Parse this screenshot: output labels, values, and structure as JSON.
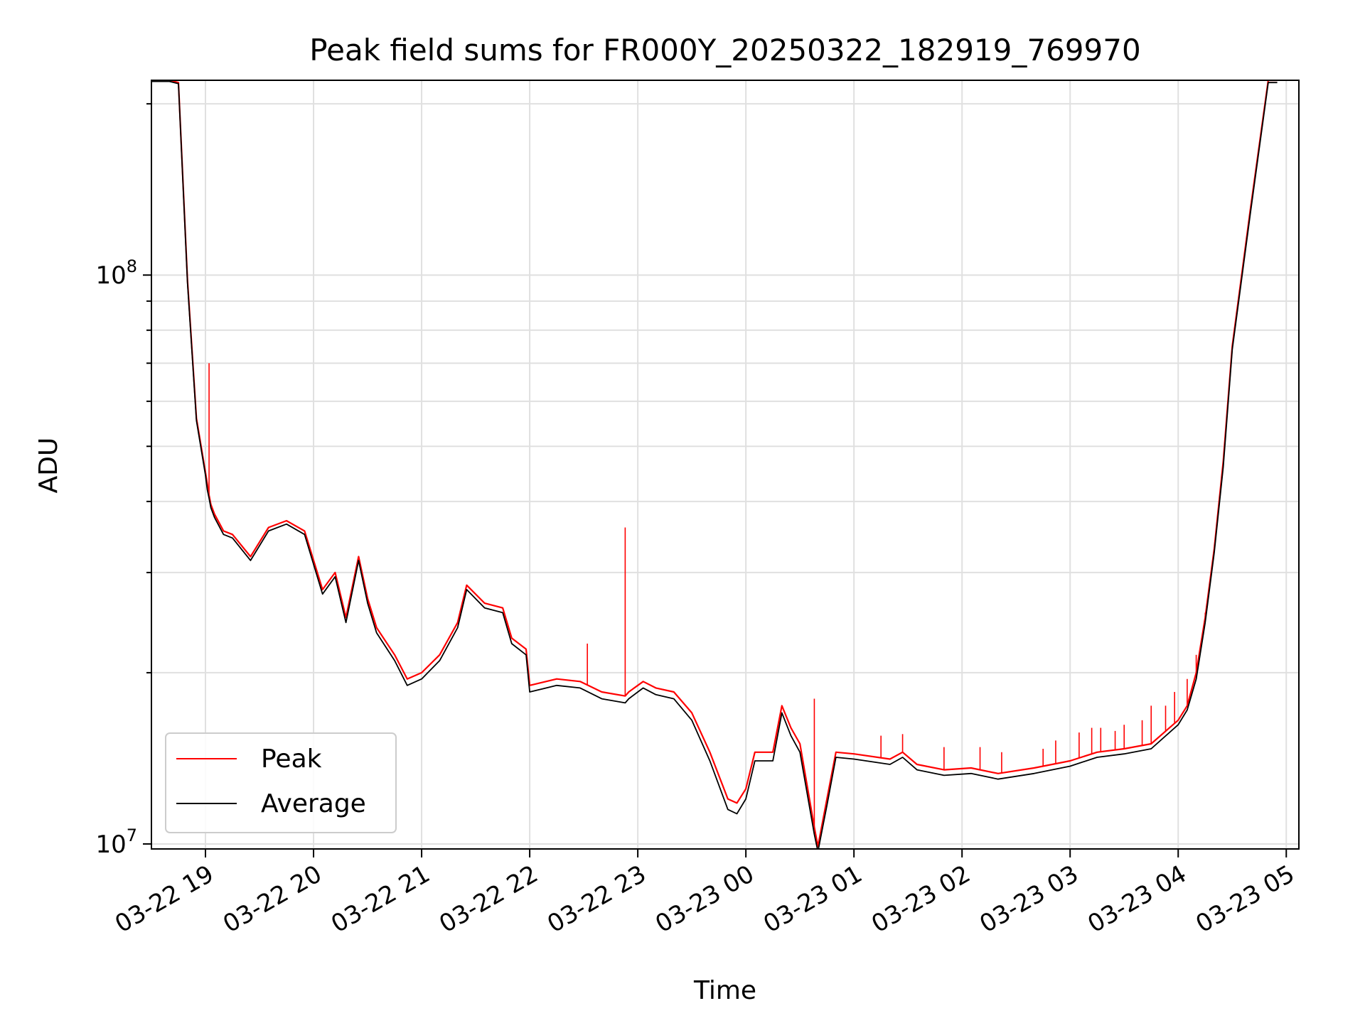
{
  "chart_data": {
    "type": "line",
    "title": "Peak field sums for FR000Y_20250322_182919_769970",
    "xlabel": "Time",
    "ylabel": "ADU",
    "y_scale": "log",
    "ylim": [
      9800000,
      220000000
    ],
    "xlim": [
      "2025-03-22T18:30",
      "2025-03-23T05:07"
    ],
    "x_ticks": [
      "03-22 19",
      "03-22 20",
      "03-22 21",
      "03-22 22",
      "03-22 23",
      "03-23 00",
      "03-23 01",
      "03-23 02",
      "03-23 03",
      "03-23 04",
      "03-23 05"
    ],
    "x_tick_values": [
      "2025-03-22T19:00",
      "2025-03-22T20:00",
      "2025-03-22T21:00",
      "2025-03-22T22:00",
      "2025-03-22T23:00",
      "2025-03-23T00:00",
      "2025-03-23T01:00",
      "2025-03-23T02:00",
      "2025-03-23T03:00",
      "2025-03-23T04:00",
      "2025-03-23T05:00"
    ],
    "y_ticks": [
      {
        "label_base": "10",
        "label_exp": "8",
        "value": 100000000
      },
      {
        "label_base": "10",
        "label_exp": "7",
        "value": 10000000
      }
    ],
    "grid": true,
    "legend_position": "lower-left",
    "series": [
      {
        "name": "Peak",
        "color": "#ff0000",
        "x": [
          "2025-03-22T18:30",
          "2025-03-22T18:40",
          "2025-03-22T18:45",
          "2025-03-22T18:50",
          "2025-03-22T18:55",
          "2025-03-22T19:00",
          "2025-03-22T19:01",
          "2025-03-22T19:02",
          "2025-03-22T19:03",
          "2025-03-22T19:05",
          "2025-03-22T19:10",
          "2025-03-22T19:15",
          "2025-03-22T19:25",
          "2025-03-22T19:35",
          "2025-03-22T19:45",
          "2025-03-22T19:55",
          "2025-03-22T20:05",
          "2025-03-22T20:12",
          "2025-03-22T20:18",
          "2025-03-22T20:25",
          "2025-03-22T20:30",
          "2025-03-22T20:35",
          "2025-03-22T20:45",
          "2025-03-22T20:52",
          "2025-03-22T21:00",
          "2025-03-22T21:10",
          "2025-03-22T21:20",
          "2025-03-22T21:25",
          "2025-03-22T21:35",
          "2025-03-22T21:45",
          "2025-03-22T21:50",
          "2025-03-22T21:58",
          "2025-03-22T22:00",
          "2025-03-22T22:15",
          "2025-03-22T22:28",
          "2025-03-22T22:40",
          "2025-03-22T22:53",
          "2025-03-22T22:55",
          "2025-03-22T23:03",
          "2025-03-22T23:10",
          "2025-03-22T23:20",
          "2025-03-22T23:30",
          "2025-03-22T23:40",
          "2025-03-22T23:50",
          "2025-03-22T23:55",
          "2025-03-23T00:00",
          "2025-03-23T00:05",
          "2025-03-23T00:15",
          "2025-03-23T00:20",
          "2025-03-23T00:25",
          "2025-03-23T00:30",
          "2025-03-23T00:38",
          "2025-03-23T00:40",
          "2025-03-23T00:45",
          "2025-03-23T00:50",
          "2025-03-23T01:00",
          "2025-03-23T01:20",
          "2025-03-23T01:27",
          "2025-03-23T01:35",
          "2025-03-23T01:50",
          "2025-03-23T02:05",
          "2025-03-23T02:20",
          "2025-03-23T02:40",
          "2025-03-23T03:00",
          "2025-03-23T03:15",
          "2025-03-23T03:30",
          "2025-03-23T03:45",
          "2025-03-23T04:00",
          "2025-03-23T04:05",
          "2025-03-23T04:10",
          "2025-03-23T04:15",
          "2025-03-23T04:20",
          "2025-03-23T04:25",
          "2025-03-23T04:30",
          "2025-03-23T04:40",
          "2025-03-23T04:50",
          "2025-03-23T04:55"
        ],
        "y": [
          220000000,
          220000000,
          218000000,
          98000000,
          56000000,
          45000000,
          43000000,
          41000000,
          39500000,
          38000000,
          35500000,
          35000000,
          32000000,
          36000000,
          37000000,
          35500000,
          28000000,
          30000000,
          25000000,
          32000000,
          27000000,
          24000000,
          21500000,
          19500000,
          20000000,
          21500000,
          24500000,
          28500000,
          26500000,
          26000000,
          23000000,
          22000000,
          19000000,
          19500000,
          19300000,
          18500000,
          18200000,
          18500000,
          19300000,
          18800000,
          18500000,
          17000000,
          14500000,
          12000000,
          11800000,
          12500000,
          14500000,
          14500000,
          17500000,
          16000000,
          15000000,
          10700000,
          9900000,
          12000000,
          14500000,
          14400000,
          14100000,
          14500000,
          13800000,
          13500000,
          13600000,
          13300000,
          13600000,
          14000000,
          14500000,
          14700000,
          15000000,
          16500000,
          17500000,
          20000000,
          25000000,
          33000000,
          47000000,
          75000000,
          130000000,
          220000000,
          220000000
        ]
      },
      {
        "name": "Average",
        "color": "#000000",
        "x": [
          "2025-03-22T18:30",
          "2025-03-22T18:40",
          "2025-03-22T18:45",
          "2025-03-22T18:50",
          "2025-03-22T18:55",
          "2025-03-22T19:00",
          "2025-03-22T19:01",
          "2025-03-22T19:02",
          "2025-03-22T19:03",
          "2025-03-22T19:05",
          "2025-03-22T19:10",
          "2025-03-22T19:15",
          "2025-03-22T19:25",
          "2025-03-22T19:35",
          "2025-03-22T19:45",
          "2025-03-22T19:55",
          "2025-03-22T20:05",
          "2025-03-22T20:12",
          "2025-03-22T20:18",
          "2025-03-22T20:25",
          "2025-03-22T20:30",
          "2025-03-22T20:35",
          "2025-03-22T20:45",
          "2025-03-22T20:52",
          "2025-03-22T21:00",
          "2025-03-22T21:10",
          "2025-03-22T21:20",
          "2025-03-22T21:25",
          "2025-03-22T21:35",
          "2025-03-22T21:45",
          "2025-03-22T21:50",
          "2025-03-22T21:58",
          "2025-03-22T22:00",
          "2025-03-22T22:15",
          "2025-03-22T22:28",
          "2025-03-22T22:40",
          "2025-03-22T22:53",
          "2025-03-22T22:55",
          "2025-03-22T23:03",
          "2025-03-22T23:10",
          "2025-03-22T23:20",
          "2025-03-22T23:30",
          "2025-03-22T23:40",
          "2025-03-22T23:50",
          "2025-03-22T23:55",
          "2025-03-23T00:00",
          "2025-03-23T00:05",
          "2025-03-23T00:15",
          "2025-03-23T00:20",
          "2025-03-23T00:25",
          "2025-03-23T00:30",
          "2025-03-23T00:38",
          "2025-03-23T00:40",
          "2025-03-23T00:45",
          "2025-03-23T00:50",
          "2025-03-23T01:00",
          "2025-03-23T01:20",
          "2025-03-23T01:27",
          "2025-03-23T01:35",
          "2025-03-23T01:50",
          "2025-03-23T02:05",
          "2025-03-23T02:20",
          "2025-03-23T02:40",
          "2025-03-23T03:00",
          "2025-03-23T03:15",
          "2025-03-23T03:30",
          "2025-03-23T03:45",
          "2025-03-23T04:00",
          "2025-03-23T04:05",
          "2025-03-23T04:10",
          "2025-03-23T04:15",
          "2025-03-23T04:20",
          "2025-03-23T04:25",
          "2025-03-23T04:30",
          "2025-03-23T04:40",
          "2025-03-23T04:50",
          "2025-03-23T04:55"
        ],
        "y": [
          219000000,
          219000000,
          217000000,
          97000000,
          55500000,
          44500000,
          42000000,
          40500000,
          39000000,
          37500000,
          35000000,
          34500000,
          31500000,
          35500000,
          36500000,
          35000000,
          27500000,
          29500000,
          24500000,
          31500000,
          26500000,
          23500000,
          21000000,
          19000000,
          19500000,
          21000000,
          24000000,
          28000000,
          26000000,
          25500000,
          22500000,
          21500000,
          18500000,
          19000000,
          18800000,
          18000000,
          17700000,
          18000000,
          18800000,
          18300000,
          18000000,
          16500000,
          14000000,
          11500000,
          11300000,
          12000000,
          14000000,
          14000000,
          17000000,
          15500000,
          14500000,
          10400000,
          9700000,
          11700000,
          14200000,
          14100000,
          13800000,
          14200000,
          13500000,
          13200000,
          13300000,
          13000000,
          13300000,
          13700000,
          14200000,
          14400000,
          14700000,
          16200000,
          17200000,
          19500000,
          24500000,
          32500000,
          46000000,
          74000000,
          128000000,
          218000000,
          218000000
        ]
      }
    ],
    "peak_spikes": [
      {
        "x": "2025-03-22T19:02",
        "y": 70000000
      },
      {
        "x": "2025-03-22T22:32",
        "y": 22500000
      },
      {
        "x": "2025-03-22T22:53",
        "y": 36000000
      },
      {
        "x": "2025-03-23T00:38",
        "y": 18000000
      },
      {
        "x": "2025-03-23T01:15",
        "y": 15500000
      },
      {
        "x": "2025-03-23T01:27",
        "y": 15600000
      },
      {
        "x": "2025-03-23T01:50",
        "y": 14800000
      },
      {
        "x": "2025-03-23T02:10",
        "y": 14800000
      },
      {
        "x": "2025-03-23T02:22",
        "y": 14500000
      },
      {
        "x": "2025-03-23T02:45",
        "y": 14700000
      },
      {
        "x": "2025-03-23T02:52",
        "y": 15200000
      },
      {
        "x": "2025-03-23T03:05",
        "y": 15700000
      },
      {
        "x": "2025-03-23T03:12",
        "y": 16000000
      },
      {
        "x": "2025-03-23T03:17",
        "y": 16000000
      },
      {
        "x": "2025-03-23T03:25",
        "y": 15800000
      },
      {
        "x": "2025-03-23T03:30",
        "y": 16200000
      },
      {
        "x": "2025-03-23T03:40",
        "y": 16500000
      },
      {
        "x": "2025-03-23T03:45",
        "y": 17500000
      },
      {
        "x": "2025-03-23T03:53",
        "y": 17500000
      },
      {
        "x": "2025-03-23T03:58",
        "y": 18500000
      },
      {
        "x": "2025-03-23T04:05",
        "y": 19500000
      },
      {
        "x": "2025-03-23T04:10",
        "y": 21500000
      },
      {
        "x": "2025-03-23T04:15",
        "y": 25500000
      }
    ]
  }
}
